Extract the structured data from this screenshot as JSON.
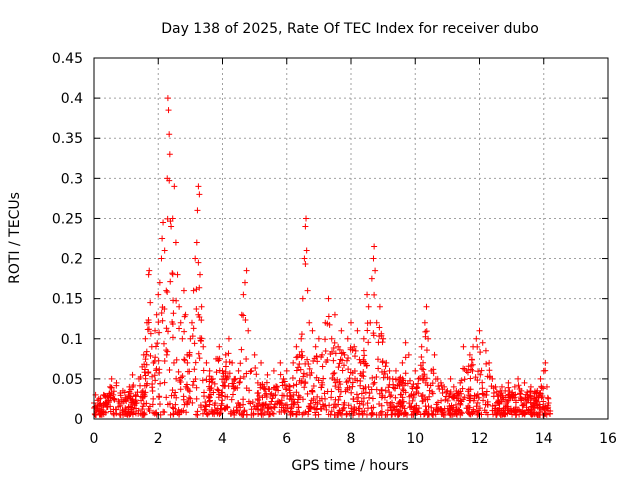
{
  "chart_data": {
    "type": "scatter",
    "title": "Day 138 of 2025, Rate Of TEC Index for receiver dubo",
    "xlabel": "GPS time / hours",
    "ylabel": "ROTI / TECUs",
    "xlim": [
      0,
      16
    ],
    "ylim": [
      0,
      0.45
    ],
    "x_ticks": [
      0,
      2,
      4,
      6,
      8,
      10,
      12,
      14,
      16
    ],
    "y_ticks": [
      0,
      0.05,
      0.1,
      0.15,
      0.2,
      0.25,
      0.3,
      0.35,
      0.4,
      0.45
    ],
    "x_tick_labels": [
      "0",
      "2",
      "4",
      "6",
      "8",
      "10",
      "12",
      "14",
      "16"
    ],
    "y_tick_labels": [
      "0",
      "0.05",
      "0.1",
      "0.15",
      "0.2",
      "0.25",
      "0.3",
      "0.35",
      "0.4",
      "0.45"
    ],
    "grid": true,
    "marker": "+",
    "series_color": "#ff0000",
    "x_range_of_data": [
      0.0,
      14.2
    ],
    "series": [
      {
        "points": [
          [
            0.0,
            0.02
          ],
          [
            0.05,
            0.03
          ],
          [
            0.1,
            0.015
          ],
          [
            0.15,
            0.025
          ],
          [
            0.2,
            0.01
          ],
          [
            0.3,
            0.03
          ],
          [
            0.35,
            0.02
          ],
          [
            0.4,
            0.015
          ],
          [
            0.5,
            0.04
          ],
          [
            0.55,
            0.05
          ],
          [
            0.6,
            0.03
          ],
          [
            0.7,
            0.045
          ],
          [
            0.8,
            0.02
          ],
          [
            0.9,
            0.035
          ],
          [
            1.0,
            0.025
          ],
          [
            1.1,
            0.04
          ],
          [
            1.2,
            0.055
          ],
          [
            1.3,
            0.03
          ],
          [
            1.4,
            0.05
          ],
          [
            1.5,
            0.065
          ],
          [
            1.55,
            0.08
          ],
          [
            1.6,
            0.1
          ],
          [
            1.65,
            0.12
          ],
          [
            1.7,
            0.18
          ],
          [
            1.72,
            0.185
          ],
          [
            1.75,
            0.145
          ],
          [
            1.8,
            0.09
          ],
          [
            1.85,
            0.07
          ],
          [
            1.9,
            0.11
          ],
          [
            1.95,
            0.13
          ],
          [
            2.0,
            0.155
          ],
          [
            2.05,
            0.17
          ],
          [
            2.1,
            0.2
          ],
          [
            2.12,
            0.225
          ],
          [
            2.15,
            0.245
          ],
          [
            2.2,
            0.21
          ],
          [
            2.25,
            0.16
          ],
          [
            2.28,
            0.3
          ],
          [
            2.3,
            0.4
          ],
          [
            2.32,
            0.385
          ],
          [
            2.34,
            0.355
          ],
          [
            2.36,
            0.33
          ],
          [
            2.4,
            0.24
          ],
          [
            2.45,
            0.25
          ],
          [
            2.5,
            0.29
          ],
          [
            2.55,
            0.22
          ],
          [
            2.6,
            0.18
          ],
          [
            2.65,
            0.14
          ],
          [
            2.7,
            0.12
          ],
          [
            2.75,
            0.1
          ],
          [
            2.8,
            0.16
          ],
          [
            2.85,
            0.13
          ],
          [
            2.9,
            0.08
          ],
          [
            3.0,
            0.1
          ],
          [
            3.05,
            0.12
          ],
          [
            3.1,
            0.16
          ],
          [
            3.15,
            0.2
          ],
          [
            3.2,
            0.22
          ],
          [
            3.22,
            0.26
          ],
          [
            3.25,
            0.29
          ],
          [
            3.28,
            0.28
          ],
          [
            3.3,
            0.18
          ],
          [
            3.35,
            0.14
          ],
          [
            3.4,
            0.09
          ],
          [
            3.5,
            0.07
          ],
          [
            3.6,
            0.06
          ],
          [
            3.7,
            0.05
          ],
          [
            3.8,
            0.075
          ],
          [
            3.9,
            0.09
          ],
          [
            4.0,
            0.06
          ],
          [
            4.1,
            0.08
          ],
          [
            4.2,
            0.1
          ],
          [
            4.3,
            0.07
          ],
          [
            4.4,
            0.05
          ],
          [
            4.5,
            0.06
          ],
          [
            4.6,
            0.13
          ],
          [
            4.65,
            0.155
          ],
          [
            4.7,
            0.17
          ],
          [
            4.75,
            0.185
          ],
          [
            4.8,
            0.11
          ],
          [
            4.9,
            0.06
          ],
          [
            5.0,
            0.08
          ],
          [
            5.1,
            0.045
          ],
          [
            5.2,
            0.07
          ],
          [
            5.3,
            0.04
          ],
          [
            5.4,
            0.055
          ],
          [
            5.5,
            0.03
          ],
          [
            5.6,
            0.06
          ],
          [
            5.7,
            0.04
          ],
          [
            5.8,
            0.07
          ],
          [
            5.9,
            0.05
          ],
          [
            6.0,
            0.06
          ],
          [
            6.1,
            0.04
          ],
          [
            6.2,
            0.07
          ],
          [
            6.3,
            0.09
          ],
          [
            6.4,
            0.08
          ],
          [
            6.45,
            0.1
          ],
          [
            6.5,
            0.15
          ],
          [
            6.55,
            0.2
          ],
          [
            6.58,
            0.24
          ],
          [
            6.6,
            0.25
          ],
          [
            6.62,
            0.21
          ],
          [
            6.65,
            0.16
          ],
          [
            6.7,
            0.12
          ],
          [
            6.8,
            0.11
          ],
          [
            6.9,
            0.09
          ],
          [
            7.0,
            0.1
          ],
          [
            7.1,
            0.08
          ],
          [
            7.2,
            0.12
          ],
          [
            7.3,
            0.15
          ],
          [
            7.4,
            0.1
          ],
          [
            7.5,
            0.13
          ],
          [
            7.6,
            0.09
          ],
          [
            7.7,
            0.11
          ],
          [
            7.8,
            0.08
          ],
          [
            7.9,
            0.1
          ],
          [
            8.0,
            0.12
          ],
          [
            8.1,
            0.09
          ],
          [
            8.2,
            0.11
          ],
          [
            8.3,
            0.07
          ],
          [
            8.4,
            0.1
          ],
          [
            8.5,
            0.155
          ],
          [
            8.55,
            0.14
          ],
          [
            8.6,
            0.12
          ],
          [
            8.65,
            0.175
          ],
          [
            8.7,
            0.2
          ],
          [
            8.72,
            0.215
          ],
          [
            8.75,
            0.185
          ],
          [
            8.8,
            0.12
          ],
          [
            8.9,
            0.14
          ],
          [
            9.0,
            0.1
          ],
          [
            9.1,
            0.07
          ],
          [
            9.2,
            0.06
          ],
          [
            9.3,
            0.05
          ],
          [
            9.4,
            0.06
          ],
          [
            9.5,
            0.05
          ],
          [
            9.6,
            0.07
          ],
          [
            9.7,
            0.095
          ],
          [
            9.8,
            0.08
          ],
          [
            9.9,
            0.04
          ],
          [
            10.0,
            0.06
          ],
          [
            10.1,
            0.05
          ],
          [
            10.2,
            0.09
          ],
          [
            10.3,
            0.12
          ],
          [
            10.35,
            0.14
          ],
          [
            10.4,
            0.1
          ],
          [
            10.5,
            0.06
          ],
          [
            10.6,
            0.08
          ],
          [
            10.7,
            0.05
          ],
          [
            10.8,
            0.045
          ],
          [
            10.9,
            0.04
          ],
          [
            11.0,
            0.035
          ],
          [
            11.1,
            0.05
          ],
          [
            11.2,
            0.04
          ],
          [
            11.3,
            0.03
          ],
          [
            11.4,
            0.045
          ],
          [
            11.5,
            0.09
          ],
          [
            11.6,
            0.06
          ],
          [
            11.7,
            0.08
          ],
          [
            11.8,
            0.09
          ],
          [
            11.9,
            0.1
          ],
          [
            12.0,
            0.11
          ],
          [
            12.1,
            0.095
          ],
          [
            12.2,
            0.085
          ],
          [
            12.3,
            0.07
          ],
          [
            12.4,
            0.05
          ],
          [
            12.5,
            0.04
          ],
          [
            12.6,
            0.03
          ],
          [
            12.7,
            0.04
          ],
          [
            12.8,
            0.035
          ],
          [
            12.9,
            0.045
          ],
          [
            13.0,
            0.03
          ],
          [
            13.1,
            0.04
          ],
          [
            13.2,
            0.05
          ],
          [
            13.3,
            0.035
          ],
          [
            13.4,
            0.045
          ],
          [
            13.5,
            0.03
          ],
          [
            13.6,
            0.04
          ],
          [
            13.7,
            0.025
          ],
          [
            13.8,
            0.035
          ],
          [
            13.9,
            0.05
          ],
          [
            14.0,
            0.06
          ],
          [
            14.05,
            0.07
          ],
          [
            14.1,
            0.04
          ],
          [
            14.15,
            0.02
          ],
          [
            14.2,
            0.01
          ]
        ]
      }
    ]
  }
}
